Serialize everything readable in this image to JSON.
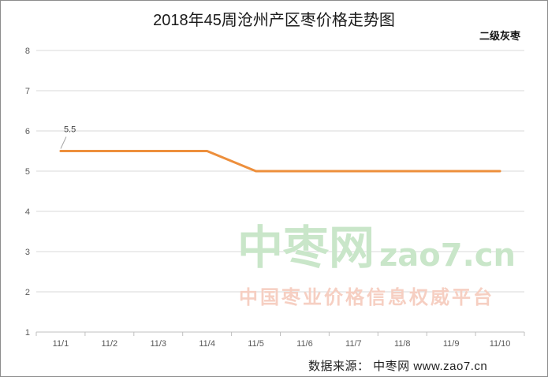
{
  "title": "2018年45周沧州产区枣价格走势图",
  "subtitle": "二级灰枣",
  "source": "数据来源： 中枣网 www.zao7.cn",
  "watermark": {
    "logo_cn": "中枣网",
    "logo_en": "zao7.cn",
    "slogan": "中国枣业价格信息权威平台"
  },
  "colors": {
    "line": "#ED8F3C",
    "grid": "#d9d9d9",
    "axis": "#bfbfbf",
    "watermark": "#c9e6c9"
  },
  "chart_data": {
    "type": "line",
    "categories": [
      "11/1",
      "11/2",
      "11/3",
      "11/4",
      "11/5",
      "11/6",
      "11/7",
      "11/8",
      "11/9",
      "11/10"
    ],
    "series": [
      {
        "values": [
          5.5,
          5.5,
          5.5,
          5.5,
          5.0,
          5.0,
          5.0,
          5.0,
          5.0,
          5.0
        ]
      }
    ],
    "data_labels": [
      {
        "index": 0,
        "text": "5.5"
      }
    ],
    "yticks": [
      "1",
      "2",
      "3",
      "4",
      "5",
      "6",
      "7",
      "8"
    ],
    "ylim": [
      1,
      8
    ],
    "grid": true,
    "legend": "none"
  }
}
